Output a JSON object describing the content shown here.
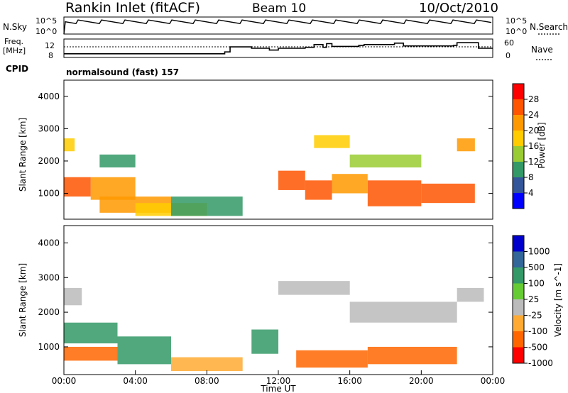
{
  "header": {
    "station": "Rankin Inlet (fitACF)",
    "beam": "Beam 10",
    "date": "10/Oct/2010"
  },
  "left_labels": {
    "nsky": "N.Sky",
    "freq_line1": "Freq.",
    "freq_line2": "[MHz]",
    "cpid": "CPID"
  },
  "right_labels": {
    "nsearch": "N.Search",
    "nave": "Nave"
  },
  "mode_label": "normalsound (fast) 157",
  "chart_data": [
    {
      "type": "line",
      "name": "noise-panel",
      "left_axis": {
        "ticks": [
          "10^5",
          "10^0"
        ]
      },
      "right_axis": {
        "ticks": [
          "10^5",
          "10^0"
        ]
      },
      "series": [
        {
          "name": "N.Sky",
          "level_fraction": 0.72
        }
      ]
    },
    {
      "type": "line",
      "name": "frequency-panel",
      "left_axis": {
        "ticks": [
          "12",
          "8"
        ],
        "range": [
          8,
          12
        ]
      },
      "right_axis": {
        "ticks": [
          "60",
          "0"
        ],
        "range": [
          0,
          60
        ]
      },
      "series": [
        {
          "name": "Freq.",
          "x": [
            0,
            9,
            9.3,
            10.5,
            11.5,
            12,
            13.5,
            14,
            14.5,
            14.7,
            15,
            16.5,
            16.8,
            18.5,
            19,
            21.8,
            22,
            23.2
          ],
          "y": [
            8.8,
            9.2,
            10.3,
            10.0,
            9.6,
            10.0,
            10.2,
            10.8,
            10.2,
            11.0,
            10.4,
            10.6,
            10.8,
            11.1,
            10.5,
            10.6,
            11.2,
            10.0
          ]
        },
        {
          "name": "Nave",
          "x": [
            0,
            24
          ],
          "y": [
            10.3,
            10.3
          ]
        }
      ]
    },
    {
      "type": "heatmap",
      "name": "power-panel",
      "x_range": [
        0,
        24
      ],
      "y_range": [
        200,
        4500
      ],
      "ylabel": "Slant Range [km]",
      "y_ticks": [
        1000,
        2000,
        3000,
        4000
      ],
      "colorbar_label": "Power [dB]",
      "colorbar_ticks": [
        "28",
        "24",
        "20",
        "16",
        "12",
        "8",
        "4"
      ],
      "colorbar_colors": [
        "#ff0000",
        "#ff5500",
        "#ff9900",
        "#ffcc00",
        "#99cc33",
        "#339966",
        "#335599",
        "#0000ff"
      ],
      "regions": [
        {
          "x": [
            0,
            1.5
          ],
          "y": [
            900,
            1500
          ],
          "value": 26
        },
        {
          "x": [
            0,
            0.6
          ],
          "y": [
            2300,
            2700
          ],
          "value": 18
        },
        {
          "x": [
            1.5,
            4
          ],
          "y": [
            800,
            1500
          ],
          "value": 20
        },
        {
          "x": [
            2,
            6
          ],
          "y": [
            400,
            900
          ],
          "value": 22
        },
        {
          "x": [
            4,
            8
          ],
          "y": [
            300,
            700
          ],
          "value": 18
        },
        {
          "x": [
            6,
            10
          ],
          "y": [
            300,
            900
          ],
          "value": 10
        },
        {
          "x": [
            12,
            13.5
          ],
          "y": [
            1100,
            1700
          ],
          "value": 26
        },
        {
          "x": [
            13.5,
            15
          ],
          "y": [
            800,
            1400
          ],
          "value": 24
        },
        {
          "x": [
            14,
            16
          ],
          "y": [
            2400,
            2800
          ],
          "value": 18
        },
        {
          "x": [
            15,
            17
          ],
          "y": [
            1000,
            1600
          ],
          "value": 22
        },
        {
          "x": [
            17,
            20
          ],
          "y": [
            600,
            1400
          ],
          "value": 26
        },
        {
          "x": [
            20,
            23
          ],
          "y": [
            700,
            1300
          ],
          "value": 24
        },
        {
          "x": [
            22,
            23
          ],
          "y": [
            2300,
            2700
          ],
          "value": 22
        },
        {
          "x": [
            16,
            20
          ],
          "y": [
            1800,
            2200
          ],
          "value": 12
        },
        {
          "x": [
            2,
            4
          ],
          "y": [
            1800,
            2200
          ],
          "value": 8
        }
      ]
    },
    {
      "type": "heatmap",
      "name": "velocity-panel",
      "x_range": [
        0,
        24
      ],
      "y_range": [
        200,
        4500
      ],
      "ylabel": "Slant Range [km]",
      "xlabel": "Time UT",
      "x_ticks": [
        "00:00",
        "04:00",
        "08:00",
        "12:00",
        "16:00",
        "20:00",
        "00:00"
      ],
      "y_ticks": [
        1000,
        2000,
        3000,
        4000
      ],
      "colorbar_label": "Velocity [m s^-1]",
      "colorbar_ticks": [
        "1000",
        "500",
        "100",
        "25",
        "-25",
        "-100",
        "-500",
        "-1000"
      ],
      "colorbar_colors": [
        "#0000cc",
        "#336699",
        "#339966",
        "#66cc33",
        "#bbbbbb",
        "#ffaa33",
        "#ff6600",
        "#ff0000"
      ],
      "regions": [
        {
          "x": [
            0,
            3
          ],
          "y": [
            1100,
            1700
          ],
          "value": 300
        },
        {
          "x": [
            0,
            3
          ],
          "y": [
            600,
            1000
          ],
          "value": -200
        },
        {
          "x": [
            3,
            6
          ],
          "y": [
            500,
            1300
          ],
          "value": 150
        },
        {
          "x": [
            6,
            10
          ],
          "y": [
            300,
            700
          ],
          "value": -100
        },
        {
          "x": [
            0,
            1
          ],
          "y": [
            2200,
            2700
          ],
          "value": 0
        },
        {
          "x": [
            10.5,
            12
          ],
          "y": [
            800,
            1500
          ],
          "value": 100
        },
        {
          "x": [
            12,
            16
          ],
          "y": [
            2500,
            2900
          ],
          "value": 0
        },
        {
          "x": [
            13,
            17
          ],
          "y": [
            400,
            900
          ],
          "value": -300
        },
        {
          "x": [
            16,
            22
          ],
          "y": [
            1700,
            2300
          ],
          "value": 0
        },
        {
          "x": [
            17,
            22
          ],
          "y": [
            500,
            1000
          ],
          "value": -200
        },
        {
          "x": [
            22,
            23.5
          ],
          "y": [
            2300,
            2700
          ],
          "value": 0
        }
      ]
    }
  ]
}
